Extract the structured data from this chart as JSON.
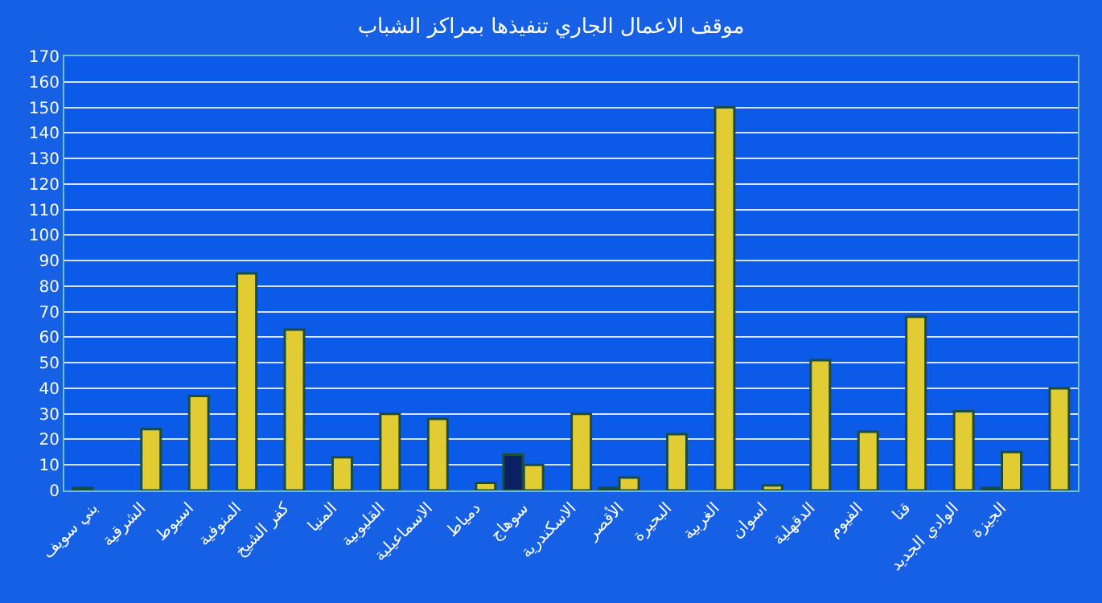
{
  "chart_data": {
    "type": "bar",
    "title": "موقف الاعمال الجاري تنفيذها بمراكز الشباب",
    "categories": [
      "بني سويف",
      "الشرقية",
      "اسيوط",
      "المنوفية",
      "كفر الشيخ",
      "المنيا",
      "القليوبية",
      "الاسماعيلية",
      "دمياط",
      "سوهاج",
      "الاسكندرية",
      "الأقصر",
      "البحيرة",
      "الغربية",
      "اسوان",
      "الدقهلية",
      "الفيوم",
      "قنا",
      "الوادي الجديد",
      "الجيزة",
      null
    ],
    "series": [
      {
        "color": "#0b1f63",
        "values": [
          1,
          null,
          null,
          null,
          null,
          null,
          null,
          null,
          null,
          14,
          null,
          1,
          null,
          null,
          null,
          null,
          null,
          null,
          null,
          1,
          null
        ]
      },
      {
        "color": "#e2cc34",
        "values": [
          null,
          24,
          37,
          85,
          63,
          13,
          30,
          28,
          3,
          10,
          30,
          5,
          22,
          150,
          2,
          51,
          23,
          68,
          31,
          15,
          40
        ]
      }
    ],
    "ylim": [
      0,
      170
    ],
    "yticks": [
      0,
      10,
      20,
      30,
      40,
      50,
      60,
      70,
      80,
      90,
      100,
      110,
      120,
      130,
      140,
      150,
      160,
      170
    ],
    "grid": "y"
  }
}
